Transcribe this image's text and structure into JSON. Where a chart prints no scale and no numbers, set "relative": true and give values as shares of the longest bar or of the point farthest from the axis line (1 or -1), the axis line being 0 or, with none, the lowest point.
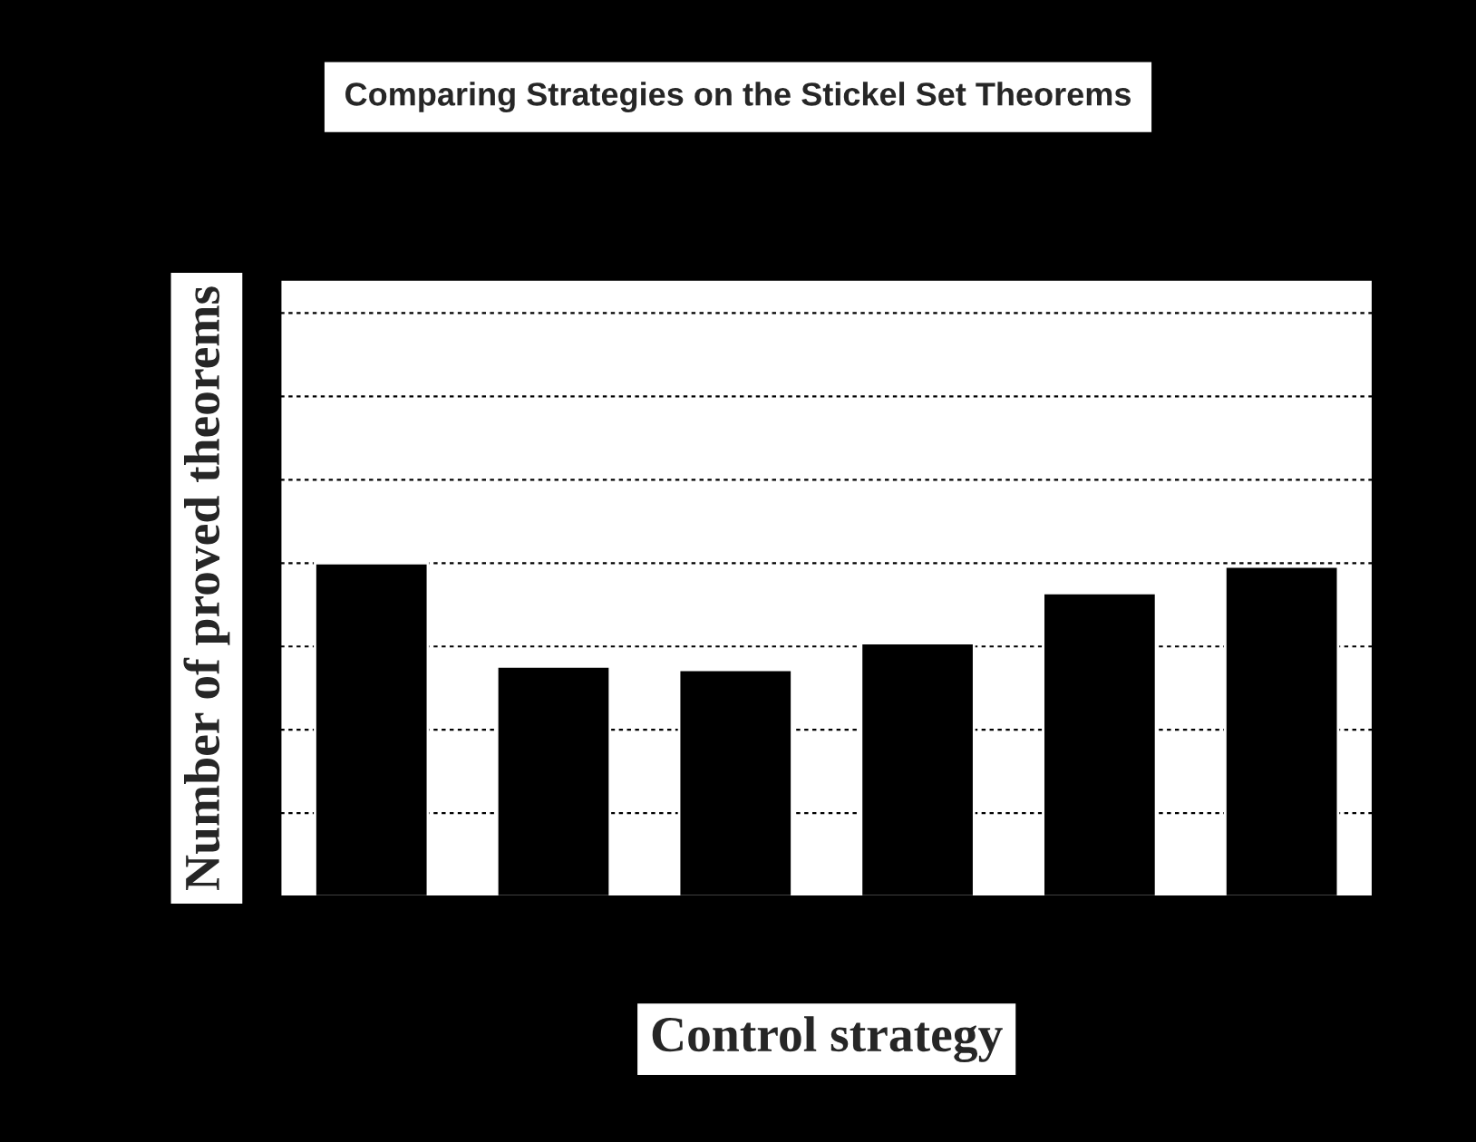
{
  "chart_data": {
    "type": "bar",
    "title": "Comparing Strategies on the Stickel Set Theorems",
    "xlabel": "Control strategy",
    "ylabel": "Number of proved theorems",
    "categories": [
      null,
      null,
      null,
      null,
      null,
      null
    ],
    "values": [
      1,
      0.69,
      0.68,
      0.76,
      0.91,
      0.99
    ],
    "color": "#000000",
    "relative": true,
    "grid": "y"
  }
}
